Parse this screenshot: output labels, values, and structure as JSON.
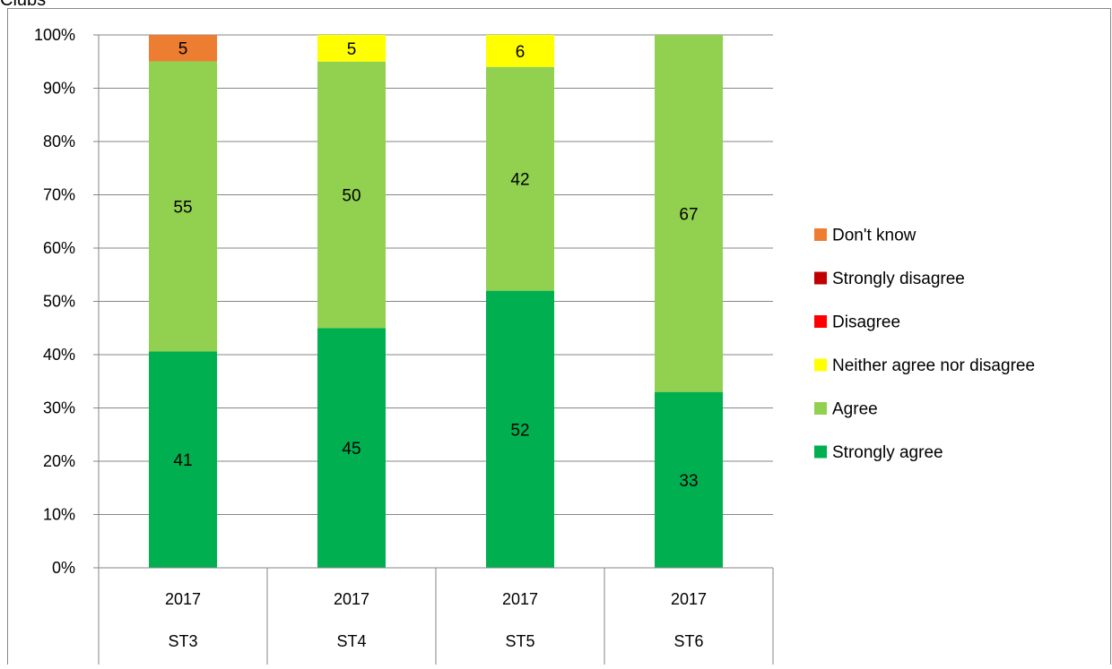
{
  "chart_title_fragment": "Clubs",
  "chart_data": {
    "type": "bar",
    "stacked": true,
    "percent": true,
    "categories": [
      {
        "year": "2017",
        "group": "ST3"
      },
      {
        "year": "2017",
        "group": "ST4"
      },
      {
        "year": "2017",
        "group": "ST5"
      },
      {
        "year": "2017",
        "group": "ST6"
      }
    ],
    "series": [
      {
        "name": "Strongly agree",
        "color": "#00b050",
        "values": [
          41,
          45,
          52,
          33
        ]
      },
      {
        "name": "Agree",
        "color": "#92d050",
        "values": [
          55,
          50,
          42,
          67
        ]
      },
      {
        "name": "Neither agree nor disagree",
        "color": "#ffff00",
        "values": [
          0,
          5,
          6,
          0
        ]
      },
      {
        "name": "Disagree",
        "color": "#ff0000",
        "values": [
          0,
          0,
          0,
          0
        ]
      },
      {
        "name": "Strongly disagree",
        "color": "#c00000",
        "values": [
          0,
          0,
          0,
          0
        ]
      },
      {
        "name": "Don't know",
        "color": "#ed7d31",
        "values": [
          5,
          0,
          0,
          0
        ]
      }
    ],
    "legend_order": [
      "Don't know",
      "Strongly disagree",
      "Disagree",
      "Neither agree nor disagree",
      "Agree",
      "Strongly agree"
    ],
    "legend_position": "right",
    "ylim": [
      0,
      100
    ],
    "yticks": [
      "0%",
      "10%",
      "20%",
      "30%",
      "40%",
      "50%",
      "60%",
      "70%",
      "80%",
      "90%",
      "100%"
    ],
    "grid": true,
    "xlabel": "",
    "ylabel": ""
  }
}
